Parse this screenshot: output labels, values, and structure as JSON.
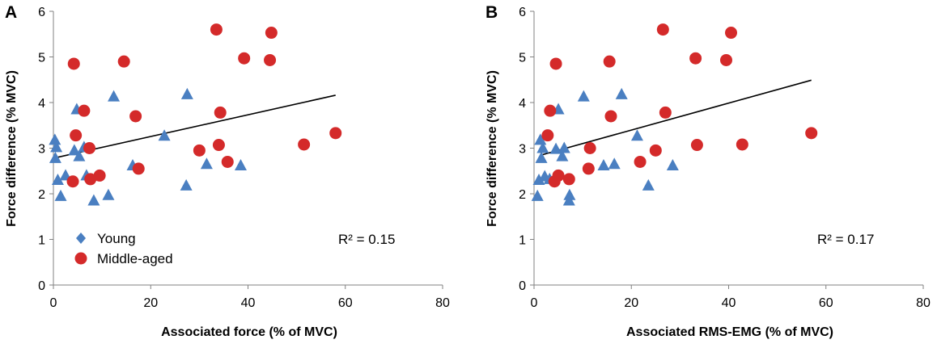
{
  "chart_data": [
    {
      "type": "scatter",
      "panel_label": "A",
      "xlabel": "Associated force (% of MVC)",
      "ylabel": "Force difference (% MVC)",
      "xlim": [
        0,
        80
      ],
      "ylim": [
        0,
        6
      ],
      "xticks": [
        0,
        20,
        40,
        60,
        80
      ],
      "yticks": [
        0,
        1,
        2,
        3,
        4,
        5,
        6
      ],
      "annotation": "R² = 0.15",
      "legend": {
        "position": "bottom-left",
        "entries": [
          "Young",
          "Middle-aged"
        ]
      },
      "colors": {
        "young": "#4a7fc1",
        "middle": "#d42a2a",
        "line": "#000000"
      },
      "trendline": {
        "x": [
          0,
          58
        ],
        "y": [
          2.78,
          4.16
        ]
      },
      "series": [
        {
          "name": "Young",
          "marker": "triangle",
          "points": [
            [
              0.3,
              3.18
            ],
            [
              0.4,
              2.78
            ],
            [
              0.6,
              3.02
            ],
            [
              0.9,
              2.3
            ],
            [
              1.5,
              1.95
            ],
            [
              2.5,
              2.4
            ],
            [
              4.3,
              2.95
            ],
            [
              4.8,
              3.85
            ],
            [
              5.3,
              2.82
            ],
            [
              6.3,
              3.02
            ],
            [
              6.8,
              2.4
            ],
            [
              8.3,
              1.85
            ],
            [
              11.3,
              1.97
            ],
            [
              12.4,
              4.13
            ],
            [
              16.3,
              2.62
            ],
            [
              22.8,
              3.27
            ],
            [
              27.3,
              2.18
            ],
            [
              27.5,
              4.18
            ],
            [
              31.5,
              2.65
            ],
            [
              38.5,
              2.62
            ]
          ]
        },
        {
          "name": "Middle-aged",
          "marker": "circle",
          "points": [
            [
              4.0,
              2.27
            ],
            [
              4.2,
              4.85
            ],
            [
              4.6,
              3.28
            ],
            [
              6.3,
              3.82
            ],
            [
              7.4,
              3.0
            ],
            [
              7.6,
              2.32
            ],
            [
              9.5,
              2.4
            ],
            [
              14.5,
              4.9
            ],
            [
              16.9,
              3.7
            ],
            [
              17.5,
              2.55
            ],
            [
              30.0,
              2.95
            ],
            [
              33.5,
              5.6
            ],
            [
              34.0,
              3.07
            ],
            [
              34.3,
              3.78
            ],
            [
              35.8,
              2.7
            ],
            [
              39.2,
              4.97
            ],
            [
              44.5,
              4.93
            ],
            [
              44.8,
              5.53
            ],
            [
              51.5,
              3.08
            ],
            [
              58.0,
              3.33
            ]
          ]
        }
      ]
    },
    {
      "type": "scatter",
      "panel_label": "B",
      "xlabel": "Associated RMS-EMG (% of MVC)",
      "ylabel": "Force difference (% MVC)",
      "xlim": [
        0,
        80
      ],
      "ylim": [
        0,
        6
      ],
      "xticks": [
        0,
        20,
        40,
        60,
        80
      ],
      "yticks": [
        0,
        1,
        2,
        3,
        4,
        5,
        6
      ],
      "annotation": "R² = 0.17",
      "colors": {
        "young": "#4a7fc1",
        "middle": "#d42a2a",
        "line": "#000000"
      },
      "trendline": {
        "x": [
          1.5,
          57
        ],
        "y": [
          2.85,
          4.49
        ]
      },
      "series": [
        {
          "name": "Young",
          "marker": "triangle",
          "points": [
            [
              0.7,
              1.95
            ],
            [
              1.0,
              2.3
            ],
            [
              1.3,
              3.18
            ],
            [
              1.5,
              2.78
            ],
            [
              1.8,
              3.0
            ],
            [
              2.2,
              2.38
            ],
            [
              3.2,
              2.32
            ],
            [
              4.5,
              2.98
            ],
            [
              5.0,
              3.85
            ],
            [
              5.8,
              2.82
            ],
            [
              6.2,
              3.0
            ],
            [
              7.2,
              1.85
            ],
            [
              7.3,
              1.97
            ],
            [
              10.2,
              4.13
            ],
            [
              14.3,
              2.62
            ],
            [
              16.5,
              2.65
            ],
            [
              18.0,
              4.18
            ],
            [
              21.2,
              3.27
            ],
            [
              23.5,
              2.18
            ],
            [
              28.5,
              2.62
            ]
          ]
        },
        {
          "name": "Middle-aged",
          "marker": "circle",
          "points": [
            [
              2.8,
              3.28
            ],
            [
              3.3,
              3.82
            ],
            [
              4.2,
              2.27
            ],
            [
              4.5,
              4.85
            ],
            [
              5.0,
              2.4
            ],
            [
              7.2,
              2.32
            ],
            [
              11.2,
              2.55
            ],
            [
              11.5,
              3.0
            ],
            [
              15.5,
              4.9
            ],
            [
              15.8,
              3.7
            ],
            [
              21.8,
              2.7
            ],
            [
              25.0,
              2.95
            ],
            [
              26.5,
              5.6
            ],
            [
              27.0,
              3.78
            ],
            [
              33.2,
              4.97
            ],
            [
              33.5,
              3.07
            ],
            [
              39.5,
              4.93
            ],
            [
              40.5,
              5.53
            ],
            [
              42.8,
              3.08
            ],
            [
              57.0,
              3.33
            ]
          ]
        }
      ]
    }
  ]
}
